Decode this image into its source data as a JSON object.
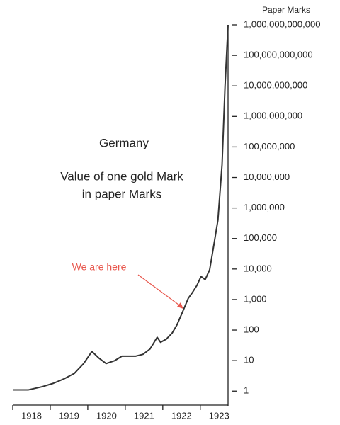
{
  "chart_data": {
    "type": "line",
    "title": "Germany",
    "subtitle": [
      "Value of one gold Mark",
      "in paper Marks"
    ],
    "y_label": "Paper Marks",
    "annotation": "We are here",
    "annotation_color": "#e8574d",
    "color": "#333333",
    "log_y": true,
    "x": [
      1918.0,
      1918.42,
      1918.79,
      1919.08,
      1919.36,
      1919.64,
      1919.89,
      1920.11,
      1920.3,
      1920.49,
      1920.72,
      1920.91,
      1921.09,
      1921.28,
      1921.47,
      1921.66,
      1921.77,
      1921.85,
      1921.94,
      1922.09,
      1922.25,
      1922.38,
      1922.53,
      1922.68,
      1922.79,
      1922.91,
      1923.02,
      1923.13,
      1923.25,
      1923.36,
      1923.47,
      1923.58,
      1923.66,
      1923.74
    ],
    "values": [
      1.1,
      1.1,
      1.4,
      1.8,
      2.5,
      3.8,
      8,
      20,
      12,
      8,
      10,
      14,
      14,
      14,
      16,
      24,
      40,
      58,
      40,
      50,
      80,
      150,
      400,
      1100,
      1700,
      2900,
      5700,
      4500,
      9500,
      60000,
      400000,
      26000000,
      10000000000,
      1000000000000
    ],
    "xlim": [
      1918,
      1923.75
    ],
    "xticks": [
      1918,
      1919,
      1920,
      1921,
      1922,
      1923
    ],
    "ylim": [
      0.33,
      1000000000000
    ],
    "yticks": [
      1,
      10,
      100,
      {
        "value": 1000,
        "label": "1,000"
      },
      {
        "value": 10000,
        "label": "10,000"
      },
      {
        "value": 100000,
        "label": "100,000"
      },
      {
        "value": 1000000,
        "label": "1,000,000"
      },
      {
        "value": 10000000,
        "label": "10,000,000"
      },
      {
        "value": 100000000,
        "label": "100,000,000"
      },
      {
        "value": 1000000000,
        "label": "1,000,000,000"
      },
      {
        "value": 10000000000,
        "label": "10,000,000,000"
      },
      {
        "value": 100000000000,
        "label": "100,000,000,000"
      },
      {
        "value": 1000000000000,
        "label": "1,000,000,000,000"
      }
    ]
  }
}
